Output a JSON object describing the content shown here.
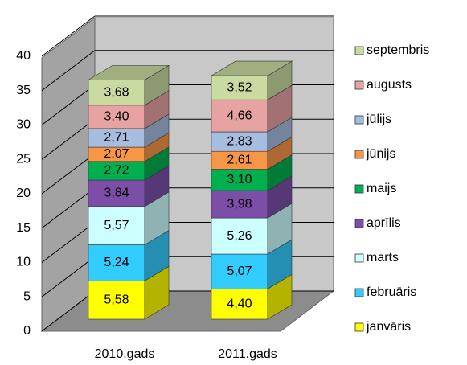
{
  "chart_data": {
    "type": "bar",
    "stacked": true,
    "three_d": true,
    "categories": [
      "2010.gads",
      "2011.gads"
    ],
    "series": [
      {
        "name": "janvāris",
        "color": "#ffff00",
        "values": [
          5.58,
          4.4
        ],
        "value_labels": [
          "5,58",
          "4,40"
        ]
      },
      {
        "name": "februāris",
        "color": "#33ccff",
        "values": [
          5.24,
          5.07
        ],
        "value_labels": [
          "5,24",
          "5,07"
        ]
      },
      {
        "name": "marts",
        "color": "#ccffff",
        "values": [
          5.57,
          5.26
        ],
        "value_labels": [
          "5,57",
          "5,26"
        ]
      },
      {
        "name": "aprīlis",
        "color": "#7d4ea8",
        "values": [
          3.84,
          3.98
        ],
        "value_labels": [
          "3,84",
          "3,98"
        ]
      },
      {
        "name": "maijs",
        "color": "#00b050",
        "values": [
          2.72,
          3.1
        ],
        "value_labels": [
          "2,72",
          "3,10"
        ]
      },
      {
        "name": "jūnijs",
        "color": "#f79646",
        "values": [
          2.07,
          2.61
        ],
        "value_labels": [
          "2,07",
          "2,61"
        ]
      },
      {
        "name": "jūlijs",
        "color": "#a6bde0",
        "values": [
          2.71,
          2.83
        ],
        "value_labels": [
          "2,71",
          "2,83"
        ]
      },
      {
        "name": "augusts",
        "color": "#e6a3a1",
        "values": [
          3.4,
          4.66
        ],
        "value_labels": [
          "3,40",
          "4,66"
        ]
      },
      {
        "name": "septembris",
        "color": "#c9dba0",
        "values": [
          3.68,
          3.52
        ],
        "value_labels": [
          "3,68",
          "3,52"
        ]
      }
    ],
    "ylim": [
      0,
      40
    ],
    "yticks": [
      0,
      5,
      10,
      15,
      20,
      25,
      30,
      35,
      40
    ],
    "grid": true,
    "legend": "right"
  }
}
